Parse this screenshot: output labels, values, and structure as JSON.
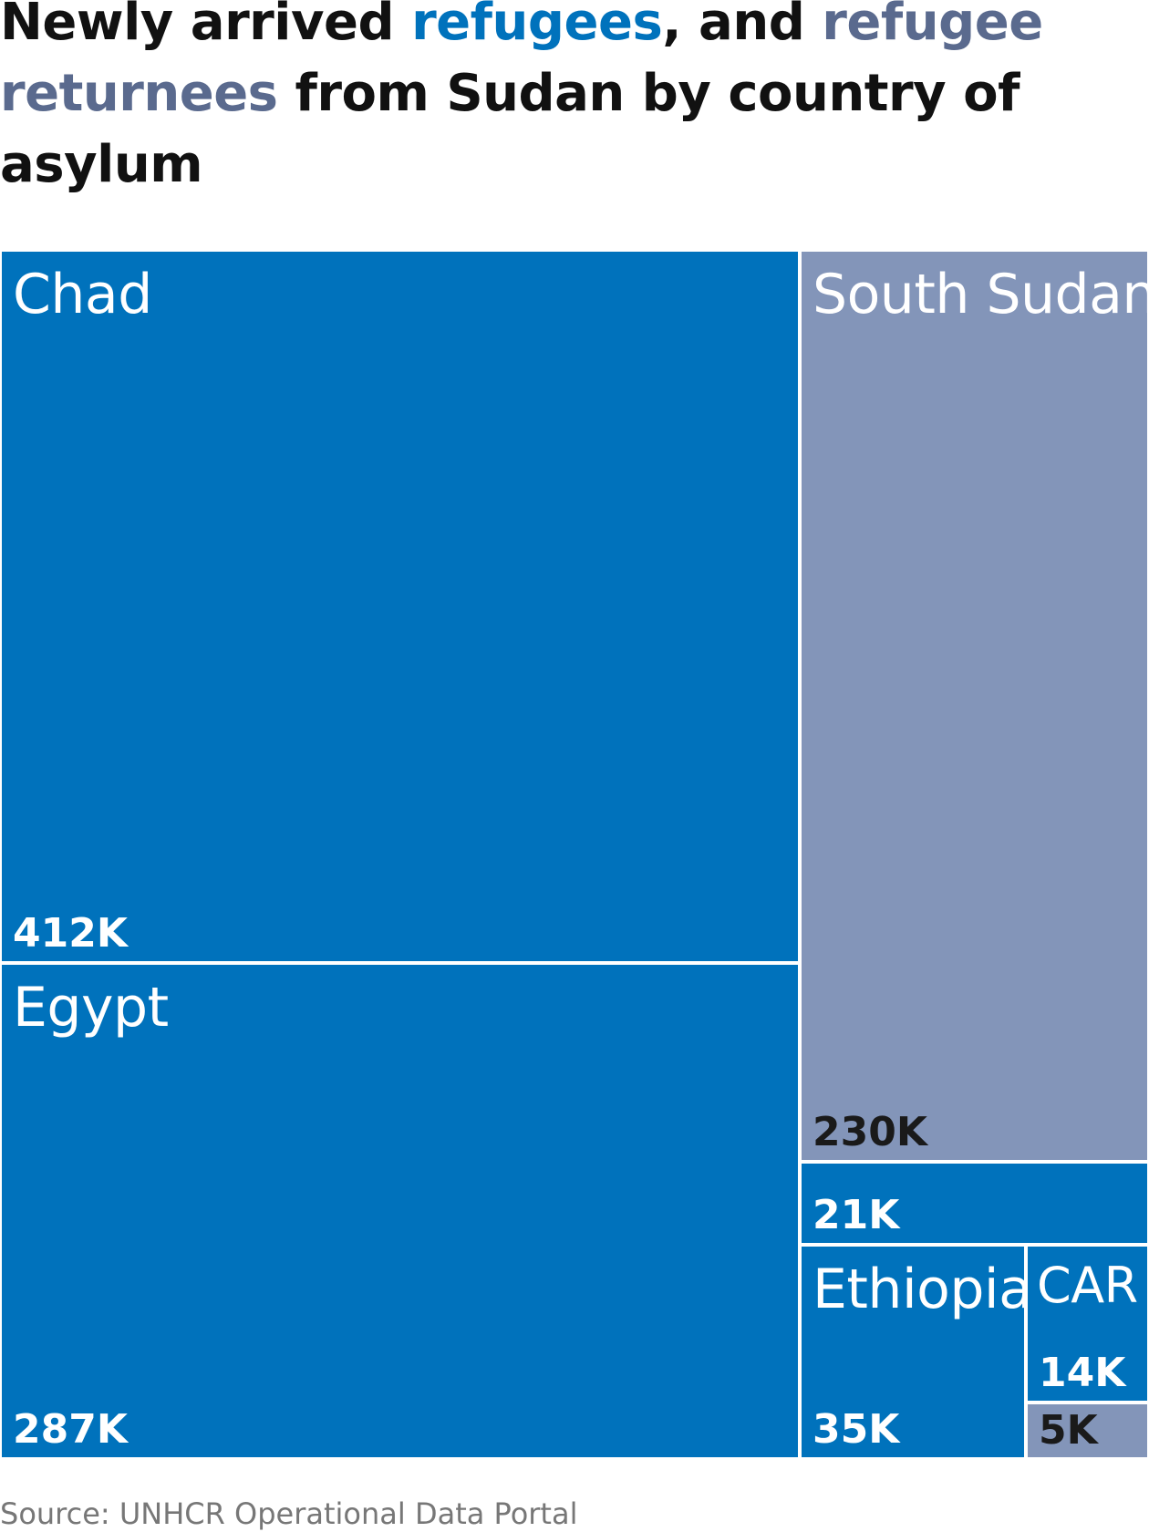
{
  "title": {
    "prefix": "Newly arrived ",
    "highlight_1": "refugees",
    "middle": ", and ",
    "highlight_2": "refugee returnees",
    "suffix": " from Sudan by country of asylum",
    "highlight_1_color": "#0072BC",
    "highlight_2_color": "#5A6A8E"
  },
  "chart_data": {
    "type": "treemap",
    "colors": {
      "refugees": "#0072BC",
      "refugee_returnees": "#8395B9",
      "label_light": "#ffffff",
      "label_dark": "#1a1a1a"
    },
    "tiles": [
      {
        "name": "Chad",
        "value": 412000,
        "value_label": "412K",
        "category": "refugees"
      },
      {
        "name": "Egypt",
        "value": 287000,
        "value_label": "287K",
        "category": "refugees"
      },
      {
        "name": "South Sudan",
        "value": 230000,
        "value_label": "230K",
        "category": "refugee_returnees"
      },
      {
        "name": "",
        "value": 21000,
        "value_label": "21K",
        "category": "refugees"
      },
      {
        "name": "Ethiopia",
        "value": 35000,
        "value_label": "35K",
        "category": "refugees"
      },
      {
        "name": "CAR",
        "value": 14000,
        "value_label": "14K",
        "category": "refugees"
      },
      {
        "name": "",
        "value": 5000,
        "value_label": "5K",
        "category": "refugee_returnees"
      }
    ]
  },
  "source": "Source: UNHCR Operational Data Portal"
}
